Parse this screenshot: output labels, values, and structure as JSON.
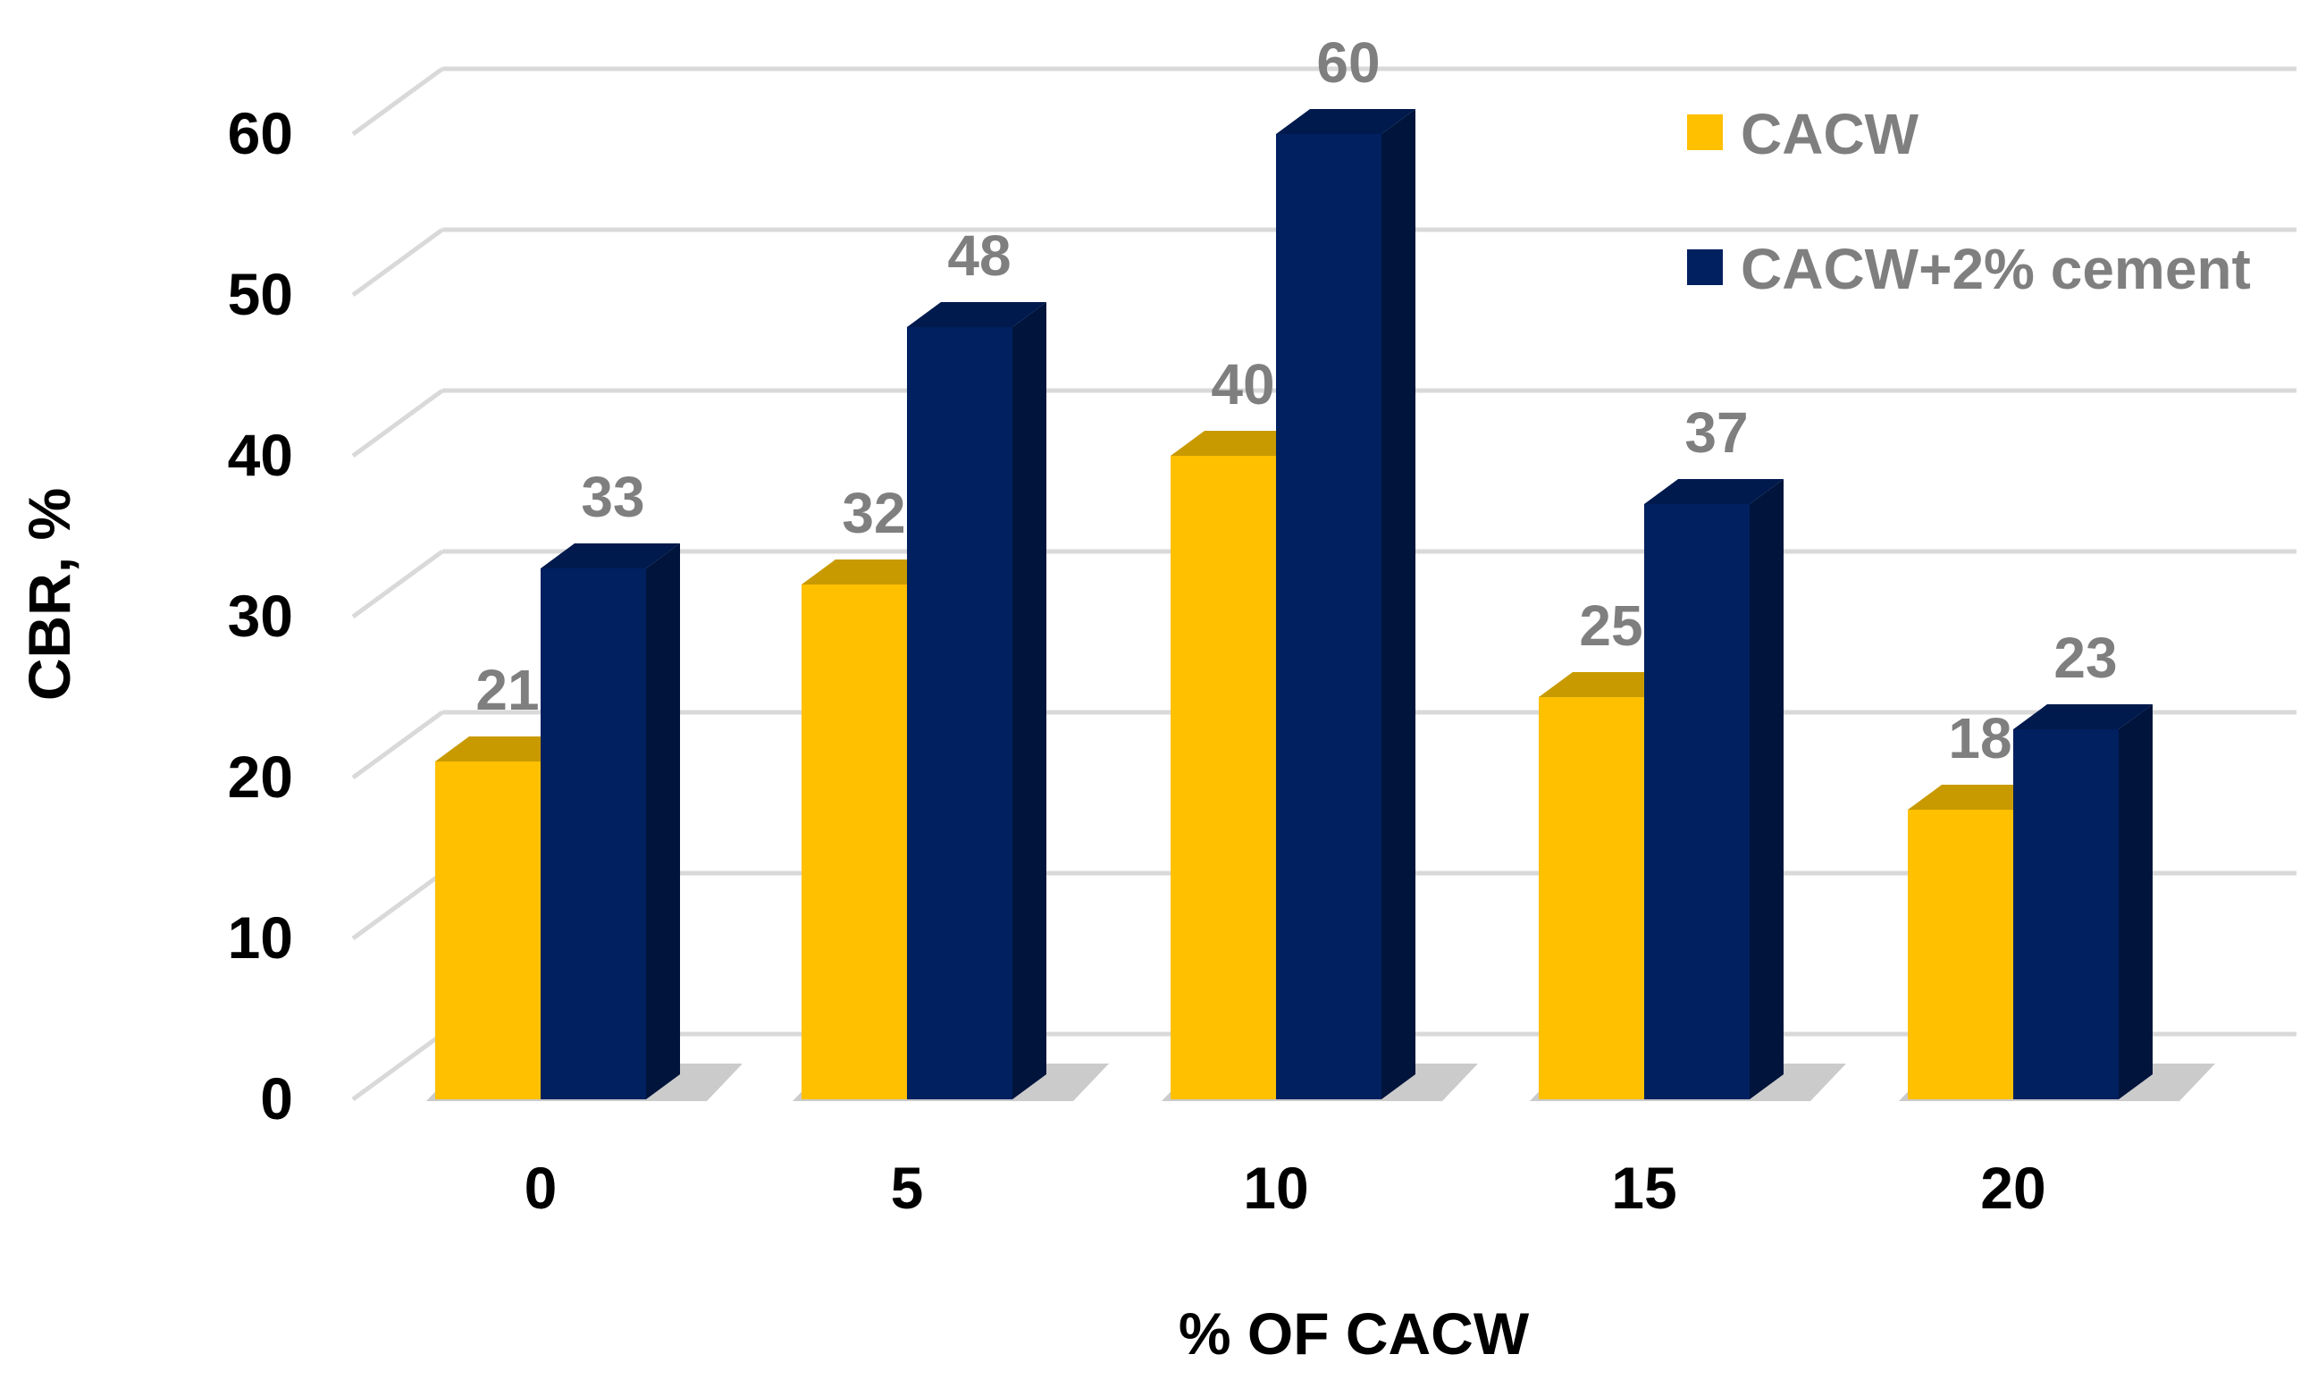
{
  "chart_data": {
    "type": "bar",
    "style": "3d-clustered",
    "title": "",
    "xlabel": "% OF CACW",
    "ylabel": "CBR, %",
    "categories": [
      "0",
      "5",
      "10",
      "15",
      "20"
    ],
    "series": [
      {
        "name": "CACW",
        "values": [
          21,
          32,
          40,
          25,
          18
        ],
        "color": "#FFC000",
        "top_color": "#C99A00",
        "side_color": "#D9A300"
      },
      {
        "name": "CACW+2% cement",
        "values": [
          33,
          48,
          60,
          37,
          23
        ],
        "color": "#002060",
        "top_color": "#001A4D",
        "side_color": "#00143C"
      }
    ],
    "ylim": [
      0,
      60
    ],
    "yticks": [
      "0",
      "10",
      "20",
      "30",
      "40",
      "50",
      "60"
    ],
    "grid": true,
    "legend_position": "top-right",
    "data_label_color": "#7F7F7F",
    "gridline_color": "#D9D9D9"
  }
}
